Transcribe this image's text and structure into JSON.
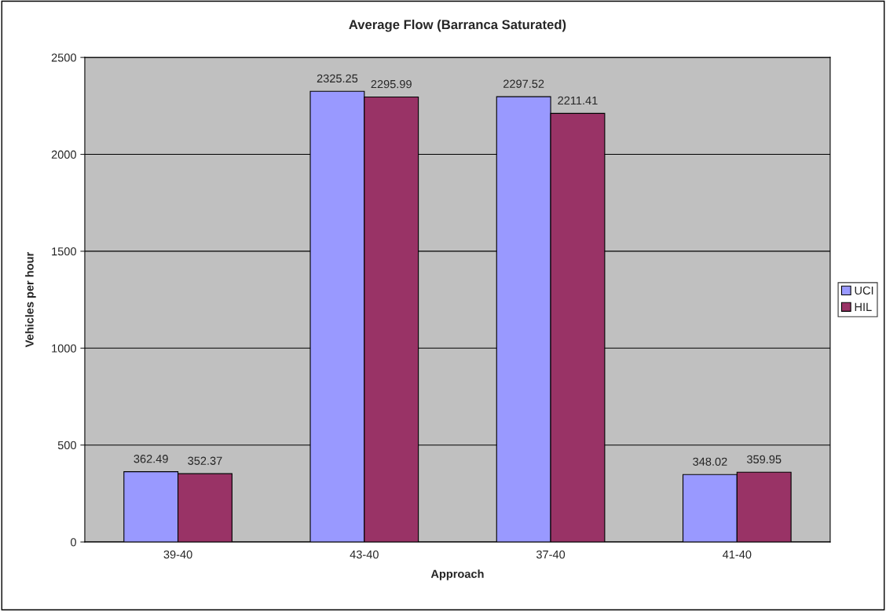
{
  "chart_data": {
    "type": "bar",
    "title": "Average Flow (Barranca Saturated)",
    "xlabel": "Approach",
    "ylabel": "Vehicles per hour",
    "categories": [
      "39-40",
      "43-40",
      "37-40",
      "41-40"
    ],
    "series": [
      {
        "name": "UCI",
        "color": "#9999ff",
        "values": [
          362.49,
          2325.25,
          2297.52,
          348.02
        ]
      },
      {
        "name": "HIL",
        "color": "#993366",
        "values": [
          352.37,
          2295.99,
          2211.41,
          359.95
        ]
      }
    ],
    "ylim": [
      0,
      2500
    ],
    "yticks": [
      0,
      500,
      1000,
      1500,
      2000,
      2500
    ],
    "grid": "y",
    "legend": "right",
    "data_labels": true
  }
}
